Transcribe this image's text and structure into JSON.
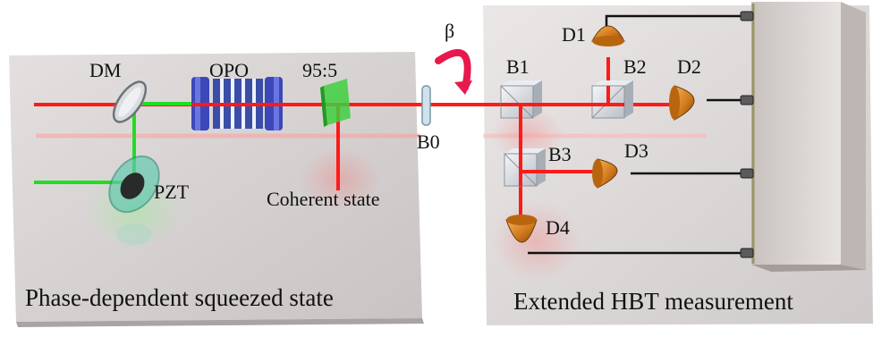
{
  "panels": {
    "left_caption": "Phase-dependent squeezed state",
    "right_caption": "Extended HBT measurement"
  },
  "components": {
    "dm": "DM",
    "opo": "OPO",
    "splitter_ratio": "95:5",
    "pzt": "PZT",
    "coherent_state": "Coherent state",
    "b0": "B0",
    "beta": "β",
    "b1": "B1",
    "b2": "B2",
    "b3": "B3",
    "d1": "D1",
    "d2": "D2",
    "d3": "D3",
    "d4": "D4"
  },
  "colors": {
    "red_beam": "#ff1a1a",
    "green_beam": "#22dd22",
    "beta_arrow": "#e8194d",
    "detector": "#d9801f",
    "left_table": "#d4cfcf",
    "right_table": "#dcd8d8",
    "cable": "#111111",
    "mirror_tint": "#bfe3ee"
  }
}
